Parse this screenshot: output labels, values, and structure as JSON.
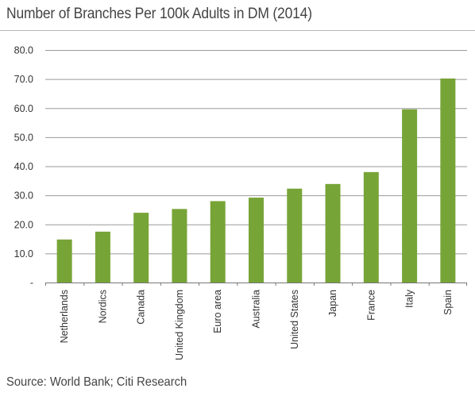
{
  "chart_data": {
    "type": "bar",
    "title": "Number of Branches Per 100k Adults in DM (2014)",
    "categories": [
      "Netherlands",
      "Nordics",
      "Canada",
      "United Kingdom",
      "Euro area",
      "Australia",
      "United States",
      "Japan",
      "France",
      "Italy",
      "Spain"
    ],
    "values": [
      14.8,
      17.5,
      24.0,
      25.3,
      28.0,
      29.2,
      32.3,
      33.9,
      38.0,
      59.6,
      70.2
    ],
    "yticks": [
      "-",
      "10.0",
      "20.0",
      "30.0",
      "40.0",
      "50.0",
      "60.0",
      "70.0",
      "80.0"
    ],
    "ylim": [
      0,
      80
    ],
    "grid": true,
    "bar_color": "#77a437",
    "source": "Source: World Bank; Citi Research"
  }
}
